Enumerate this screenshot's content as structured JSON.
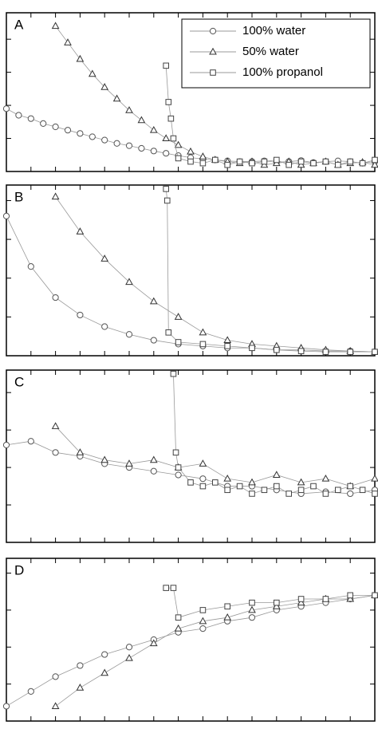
{
  "chart_data": [
    {
      "type": "line",
      "title": "A",
      "xlim": [
        0,
        15
      ],
      "ylim": [
        0,
        4.8
      ],
      "xticks": [
        1,
        2,
        3,
        4,
        5,
        6,
        7,
        8,
        9,
        10,
        11,
        12,
        13,
        14
      ],
      "yticks": [
        1,
        2,
        3,
        4
      ],
      "legend": "upper right",
      "series": [
        {
          "name": "100% water",
          "marker": "circle",
          "color": "#555555",
          "x": [
            0,
            0.5,
            1,
            1.5,
            2,
            2.5,
            3,
            3.5,
            4,
            4.5,
            5,
            5.5,
            6,
            6.5,
            7,
            7.5,
            8,
            8.5,
            9,
            9.5,
            10,
            10.5,
            11,
            11.5,
            12,
            12.5,
            13,
            13.5,
            14,
            14.5,
            15
          ],
          "values": [
            1.9,
            1.7,
            1.6,
            1.45,
            1.35,
            1.25,
            1.15,
            1.05,
            0.95,
            0.85,
            0.78,
            0.7,
            0.62,
            0.55,
            0.48,
            0.42,
            0.38,
            0.35,
            0.32,
            0.3,
            0.3,
            0.32,
            0.28,
            0.3,
            0.33,
            0.27,
            0.3,
            0.32,
            0.3,
            0.25,
            0.3
          ]
        },
        {
          "name": "50% water",
          "marker": "triangle",
          "color": "#333333",
          "x": [
            2,
            2.5,
            3,
            3.5,
            4,
            4.5,
            5,
            5.5,
            6,
            6.5,
            7,
            7.5,
            8,
            8.5,
            9,
            9.5,
            10,
            10.5,
            11,
            11.5,
            12,
            12.5,
            13,
            13.5,
            14,
            14.5,
            15
          ],
          "values": [
            4.4,
            3.9,
            3.4,
            2.95,
            2.55,
            2.2,
            1.85,
            1.55,
            1.25,
            1.0,
            0.8,
            0.6,
            0.45,
            0.35,
            0.3,
            0.25,
            0.3,
            0.2,
            0.25,
            0.3,
            0.2,
            0.25,
            0.3,
            0.2,
            0.25,
            0.28,
            0.2
          ]
        },
        {
          "name": "100% propanol",
          "marker": "square",
          "color": "#444444",
          "x": [
            6.5,
            6.6,
            6.7,
            6.8,
            7,
            7.5,
            8,
            8.5,
            9,
            9.5,
            10,
            10.5,
            11,
            11.5,
            12,
            12.5,
            13,
            13.5,
            14,
            14.5,
            15
          ],
          "values": [
            3.2,
            2.1,
            1.6,
            1.0,
            0.4,
            0.3,
            0.25,
            0.35,
            0.2,
            0.3,
            0.25,
            0.3,
            0.35,
            0.2,
            0.3,
            0.25,
            0.3,
            0.2,
            0.3,
            0.25,
            0.35
          ]
        }
      ]
    },
    {
      "type": "line",
      "title": "B",
      "xlim": [
        0,
        15
      ],
      "ylim": [
        0,
        4.4
      ],
      "xticks": [
        1,
        2,
        3,
        4,
        5,
        6,
        7,
        8,
        9,
        10,
        11,
        12,
        13,
        14
      ],
      "yticks": [
        1,
        2,
        3,
        4
      ],
      "series": [
        {
          "marker": "circle",
          "color": "#555555",
          "x": [
            0,
            1,
            2,
            3,
            4,
            5,
            6,
            7,
            8,
            9,
            10,
            11,
            12,
            13,
            14,
            15
          ],
          "values": [
            3.6,
            2.3,
            1.5,
            1.05,
            0.75,
            0.55,
            0.4,
            0.3,
            0.25,
            0.2,
            0.2,
            0.15,
            0.15,
            0.12,
            0.12,
            0.1
          ]
        },
        {
          "marker": "triangle",
          "color": "#333333",
          "x": [
            2,
            3,
            4,
            5,
            6,
            7,
            8,
            9,
            10,
            11,
            12,
            13,
            14,
            15
          ],
          "values": [
            4.1,
            3.2,
            2.5,
            1.9,
            1.4,
            1.0,
            0.6,
            0.4,
            0.3,
            0.25,
            0.2,
            0.15,
            0.12,
            0.1
          ]
        },
        {
          "marker": "square",
          "color": "#444444",
          "x": [
            6.5,
            6.55,
            6.6,
            7,
            8,
            9,
            10,
            11,
            12,
            13,
            14,
            15
          ],
          "values": [
            4.3,
            4.0,
            0.6,
            0.35,
            0.3,
            0.25,
            0.2,
            0.15,
            0.12,
            0.1,
            0.1,
            0.1
          ]
        }
      ]
    },
    {
      "type": "line",
      "title": "C",
      "xlim": [
        0,
        15
      ],
      "ylim": [
        0,
        4.6
      ],
      "xticks": [
        1,
        2,
        3,
        4,
        5,
        6,
        7,
        8,
        9,
        10,
        11,
        12,
        13,
        14
      ],
      "yticks": [
        1,
        2,
        3,
        4
      ],
      "series": [
        {
          "marker": "circle",
          "color": "#555555",
          "x": [
            0,
            1,
            2,
            3,
            4,
            5,
            6,
            7,
            8,
            9,
            10,
            11,
            12,
            13,
            14,
            15
          ],
          "values": [
            2.6,
            2.7,
            2.4,
            2.3,
            2.1,
            2.0,
            1.9,
            1.8,
            1.7,
            1.5,
            1.5,
            1.4,
            1.3,
            1.35,
            1.3,
            1.4
          ]
        },
        {
          "marker": "triangle",
          "color": "#333333",
          "x": [
            2,
            3,
            4,
            5,
            6,
            7,
            8,
            9,
            10,
            11,
            12,
            13,
            14,
            15
          ],
          "values": [
            3.1,
            2.4,
            2.2,
            2.1,
            2.2,
            2.0,
            2.1,
            1.7,
            1.6,
            1.8,
            1.6,
            1.7,
            1.5,
            1.7
          ]
        },
        {
          "marker": "square",
          "color": "#444444",
          "x": [
            6.8,
            6.9,
            7,
            7.5,
            8,
            8.5,
            9,
            9.5,
            10,
            10.5,
            11,
            11.5,
            12,
            12.5,
            13,
            13.5,
            14,
            14.5,
            15
          ],
          "values": [
            4.5,
            2.4,
            2.0,
            1.6,
            1.5,
            1.6,
            1.4,
            1.5,
            1.3,
            1.4,
            1.5,
            1.3,
            1.4,
            1.5,
            1.3,
            1.4,
            1.5,
            1.4,
            1.3
          ]
        }
      ]
    },
    {
      "type": "line",
      "title": "D",
      "xlim": [
        0,
        15
      ],
      "ylim": [
        0,
        4.4
      ],
      "xticks": [
        1,
        2,
        3,
        4,
        5,
        6,
        7,
        8,
        9,
        10,
        11,
        12,
        13,
        14
      ],
      "yticks": [
        1,
        2,
        3,
        4
      ],
      "series": [
        {
          "marker": "circle",
          "color": "#555555",
          "x": [
            0,
            1,
            2,
            3,
            4,
            5,
            6,
            7,
            8,
            9,
            10,
            11,
            12,
            13,
            14,
            15
          ],
          "values": [
            0.4,
            0.8,
            1.2,
            1.5,
            1.8,
            2.0,
            2.2,
            2.4,
            2.5,
            2.7,
            2.8,
            3.0,
            3.1,
            3.2,
            3.3,
            3.4
          ]
        },
        {
          "marker": "triangle",
          "color": "#333333",
          "x": [
            2,
            3,
            4,
            5,
            6,
            7,
            8,
            9,
            10,
            11,
            12,
            13,
            14,
            15
          ],
          "values": [
            0.4,
            0.9,
            1.3,
            1.7,
            2.1,
            2.5,
            2.7,
            2.8,
            3.0,
            3.1,
            3.2,
            3.3,
            3.3,
            3.4
          ]
        },
        {
          "marker": "square",
          "color": "#444444",
          "x": [
            6.5,
            6.8,
            7,
            8,
            9,
            10,
            11,
            12,
            13,
            14,
            15
          ],
          "values": [
            3.6,
            3.6,
            2.8,
            3.0,
            3.1,
            3.2,
            3.2,
            3.3,
            3.3,
            3.4,
            3.4
          ]
        }
      ]
    }
  ]
}
